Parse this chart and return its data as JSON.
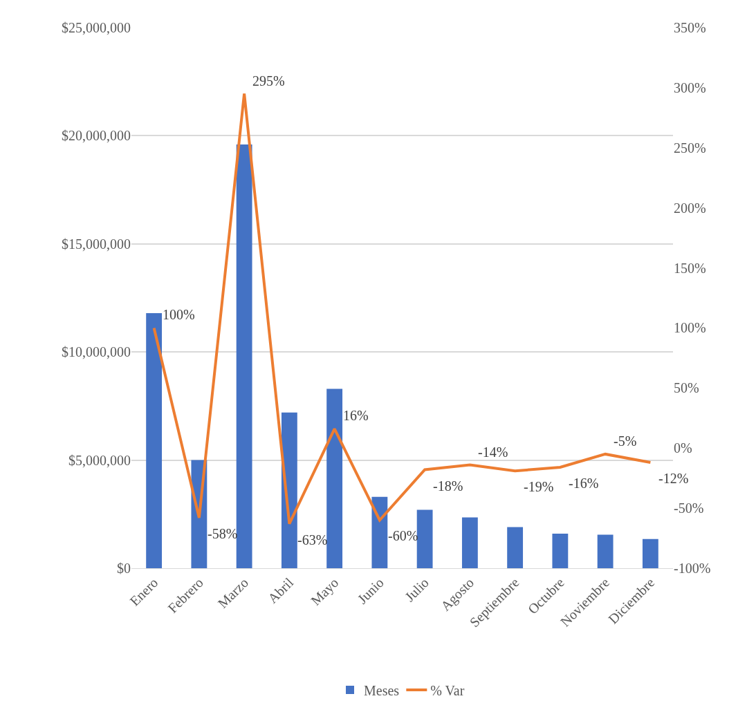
{
  "chart_data": {
    "type": "bar",
    "categories": [
      "Enero",
      "Febrero",
      "Marzo",
      "Abril",
      "Mayo",
      "Junio",
      "Julio",
      "Agosto",
      "Septiembre",
      "Octubre",
      "Noviembre",
      "Diciembre"
    ],
    "series": [
      {
        "name": "Meses",
        "color": "#4472c4",
        "values": [
          11800000,
          5000000,
          19600000,
          7200000,
          8300000,
          3300000,
          2700000,
          2350000,
          1900000,
          1600000,
          1550000,
          1350000
        ]
      },
      {
        "name": "% Var",
        "type": "line",
        "axis": "y2",
        "color": "#ed7d31",
        "marker": "none",
        "line_style": "solid",
        "values": [
          100,
          -58,
          295,
          -63,
          16,
          -60,
          -18,
          -14,
          -19,
          -16,
          -5,
          -12
        ],
        "value_labels": [
          "100%",
          "-58%",
          "295%",
          "-63%",
          "16%",
          "-60%",
          "-18%",
          "-14%",
          "-19%",
          "-16%",
          "-5%",
          "-12%"
        ]
      }
    ],
    "ylim": [
      0,
      25000000
    ],
    "yticks": [
      {
        "value": 0,
        "label": "$0"
      },
      {
        "value": 5000000,
        "label": "$5,000,000"
      },
      {
        "value": 10000000,
        "label": "$10,000,000"
      },
      {
        "value": 15000000,
        "label": "$15,000,000"
      },
      {
        "value": 20000000,
        "label": "$20,000,000"
      },
      {
        "value": 25000000,
        "label": "$25,000,000"
      }
    ],
    "y2lim": [
      -100,
      350
    ],
    "y2ticks": [
      {
        "value": -100,
        "label": "-100%"
      },
      {
        "value": -50,
        "label": "-50%"
      },
      {
        "value": 0,
        "label": "0%"
      },
      {
        "value": 50,
        "label": "50%"
      },
      {
        "value": 100,
        "label": "100%"
      },
      {
        "value": 150,
        "label": "150%"
      },
      {
        "value": 200,
        "label": "200%"
      },
      {
        "value": 250,
        "label": "250%"
      },
      {
        "value": 300,
        "label": "300%"
      },
      {
        "value": 350,
        "label": "350%"
      }
    ],
    "grid": "y",
    "legend": "bottom"
  }
}
